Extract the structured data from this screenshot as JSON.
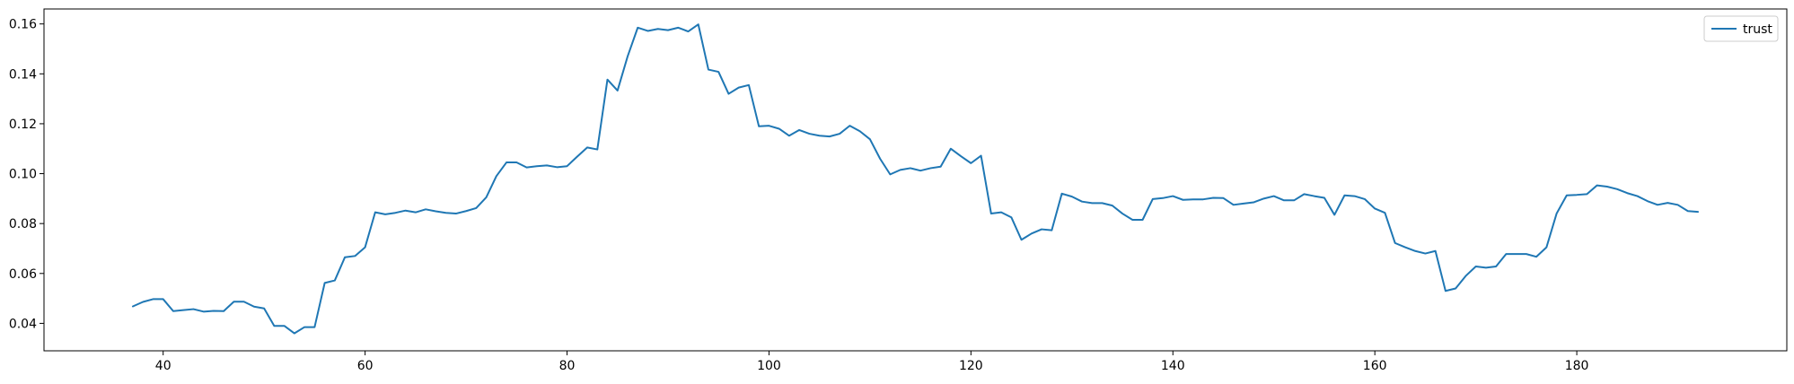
{
  "chart_data": {
    "type": "line",
    "title": "",
    "xlabel": "",
    "ylabel": "",
    "xlim": [
      28.2,
      200.8
    ],
    "ylim": [
      0.029,
      0.166
    ],
    "xticks": [
      40,
      60,
      80,
      100,
      120,
      140,
      160,
      180
    ],
    "xtick_labels": [
      "40",
      "60",
      "80",
      "100",
      "120",
      "140",
      "160",
      "180"
    ],
    "yticks": [
      0.04,
      0.06,
      0.08,
      0.1,
      0.12,
      0.14,
      0.16
    ],
    "ytick_labels": [
      "0.04",
      "0.06",
      "0.08",
      "0.10",
      "0.12",
      "0.14",
      "0.16"
    ],
    "grid": false,
    "legend_position": "top-right",
    "series": [
      {
        "name": "trust",
        "color": "#1f77b4",
        "x": [
          37,
          38,
          39,
          40,
          41,
          42,
          43,
          44,
          45,
          46,
          47,
          48,
          49,
          50,
          51,
          52,
          53,
          54,
          55,
          56,
          57,
          58,
          59,
          60,
          61,
          62,
          63,
          64,
          65,
          66,
          67,
          68,
          69,
          70,
          71,
          72,
          73,
          74,
          75,
          76,
          77,
          78,
          79,
          80,
          81,
          82,
          83,
          84,
          85,
          86,
          87,
          88,
          89,
          90,
          91,
          92,
          93,
          94,
          95,
          96,
          97,
          98,
          99,
          100,
          101,
          102,
          103,
          104,
          105,
          106,
          107,
          108,
          109,
          110,
          111,
          112,
          113,
          114,
          115,
          116,
          117,
          118,
          119,
          120,
          121,
          122,
          123,
          124,
          125,
          126,
          127,
          128,
          129,
          130,
          131,
          132,
          133,
          134,
          135,
          136,
          137,
          138,
          139,
          140,
          141,
          142,
          143,
          144,
          145,
          146,
          147,
          148,
          149,
          150,
          151,
          152,
          153,
          154,
          155,
          156,
          157,
          158,
          159,
          160,
          161,
          162,
          163,
          164,
          165,
          166,
          167,
          168,
          169,
          170,
          171,
          172,
          173,
          174,
          175,
          176,
          177,
          178,
          179,
          180,
          181,
          182,
          183,
          184,
          185,
          186,
          187,
          188,
          189,
          190,
          191,
          192
        ],
        "values": [
          0.0468,
          0.0486,
          0.0497,
          0.0497,
          0.0449,
          0.0453,
          0.0457,
          0.0447,
          0.045,
          0.0449,
          0.0487,
          0.0487,
          0.0467,
          0.046,
          0.039,
          0.039,
          0.036,
          0.0385,
          0.0385,
          0.0562,
          0.0572,
          0.0665,
          0.067,
          0.0705,
          0.0845,
          0.0837,
          0.0843,
          0.0852,
          0.0845,
          0.0857,
          0.0849,
          0.0843,
          0.084,
          0.085,
          0.0862,
          0.0905,
          0.099,
          0.1045,
          0.1045,
          0.1025,
          0.103,
          0.1033,
          0.1026,
          0.103,
          0.1068,
          0.1105,
          0.1097,
          0.1377,
          0.1333,
          0.147,
          0.1585,
          0.1572,
          0.158,
          0.1575,
          0.1585,
          0.157,
          0.1598,
          0.1417,
          0.1408,
          0.132,
          0.1345,
          0.1355,
          0.119,
          0.1192,
          0.118,
          0.1152,
          0.1175,
          0.116,
          0.1152,
          0.1149,
          0.116,
          0.1192,
          0.117,
          0.1138,
          0.106,
          0.0997,
          0.1015,
          0.1022,
          0.1012,
          0.1022,
          0.1028,
          0.11,
          0.107,
          0.1042,
          0.1072,
          0.084,
          0.0845,
          0.0825,
          0.0735,
          0.076,
          0.0777,
          0.0773,
          0.092,
          0.0908,
          0.0888,
          0.0882,
          0.0882,
          0.0872,
          0.084,
          0.0815,
          0.0815,
          0.0898,
          0.0902,
          0.091,
          0.0895,
          0.0897,
          0.0897,
          0.0903,
          0.0902,
          0.0875,
          0.088,
          0.0885,
          0.09,
          0.091,
          0.0893,
          0.0893,
          0.0918,
          0.091,
          0.0903,
          0.0835,
          0.0913,
          0.091,
          0.0898,
          0.086,
          0.0843,
          0.0722,
          0.0705,
          0.069,
          0.068,
          0.069,
          0.053,
          0.054,
          0.059,
          0.0628,
          0.0623,
          0.0628,
          0.0678,
          0.0678,
          0.0678,
          0.0667,
          0.0705,
          0.084,
          0.0913,
          0.0915,
          0.0918,
          0.0953,
          0.0948,
          0.0938,
          0.0922,
          0.091,
          0.089,
          0.0875,
          0.0883,
          0.0875,
          0.085,
          0.0847
        ]
      }
    ]
  }
}
